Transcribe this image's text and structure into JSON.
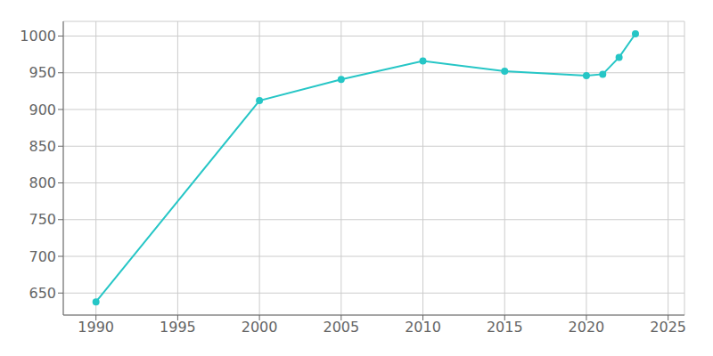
{
  "chart_data": {
    "type": "line",
    "x": [
      1990,
      2000,
      2005,
      2010,
      2015,
      2020,
      2021,
      2022,
      2023
    ],
    "values": [
      638,
      912,
      941,
      966,
      952,
      946,
      948,
      971,
      1003
    ],
    "color": "#26c6c6",
    "marker": "o",
    "xlim": [
      1988,
      2026
    ],
    "ylim": [
      620,
      1020
    ],
    "xticks": [
      1990,
      1995,
      2000,
      2005,
      2010,
      2015,
      2020,
      2025
    ],
    "yticks": [
      650,
      700,
      750,
      800,
      850,
      900,
      950,
      1000
    ],
    "grid": true
  }
}
